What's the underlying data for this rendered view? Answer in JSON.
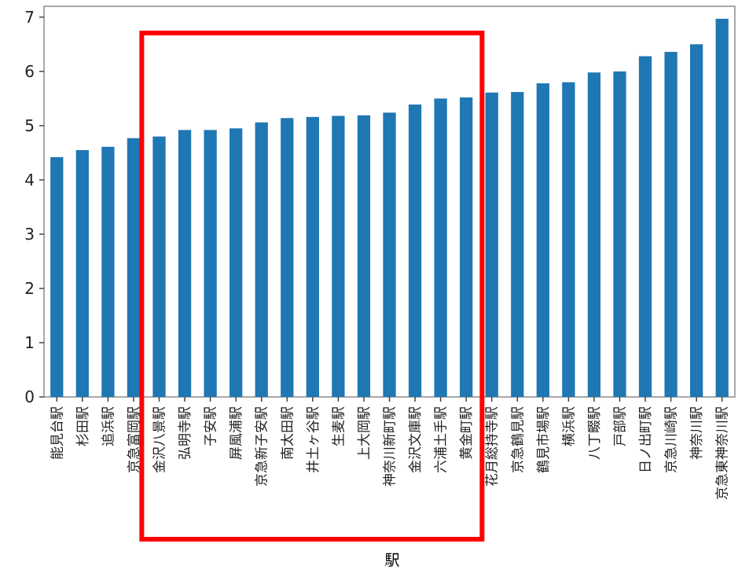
{
  "chart_data": {
    "type": "bar",
    "xlabel": "駅",
    "ylabel": "",
    "title": "",
    "ylim": [
      0,
      7.2
    ],
    "yticks": [
      0,
      1,
      2,
      3,
      4,
      5,
      6,
      7
    ],
    "grid": false,
    "legend": "none",
    "bar_color": "#1f77b4",
    "categories": [
      "能見台駅",
      "杉田駅",
      "追浜駅",
      "京急富岡駅",
      "金沢八景駅",
      "弘明寺駅",
      "子安駅",
      "屏風浦駅",
      "京急新子安駅",
      "南太田駅",
      "井土ヶ谷駅",
      "生麦駅",
      "上大岡駅",
      "神奈川新町駅",
      "金沢文庫駅",
      "六浦土手駅",
      "黄金町駅",
      "花月総持寺駅",
      "京急鶴見駅",
      "鶴見市場駅",
      "横浜駅",
      "八丁畷駅",
      "戸部駅",
      "日ノ出町駅",
      "京急川崎駅",
      "神奈川駅",
      "京急東神奈川駅"
    ],
    "values": [
      4.42,
      4.55,
      4.61,
      4.77,
      4.8,
      4.92,
      4.92,
      4.95,
      5.06,
      5.14,
      5.16,
      5.18,
      5.19,
      5.24,
      5.39,
      5.5,
      5.52,
      5.61,
      5.62,
      5.78,
      5.8,
      5.98,
      6.0,
      6.28,
      6.36,
      6.5,
      6.97
    ]
  },
  "annotation": {
    "highlight_color": "#ff0000",
    "highlight_from_index": 4,
    "highlight_to_index": 16
  }
}
